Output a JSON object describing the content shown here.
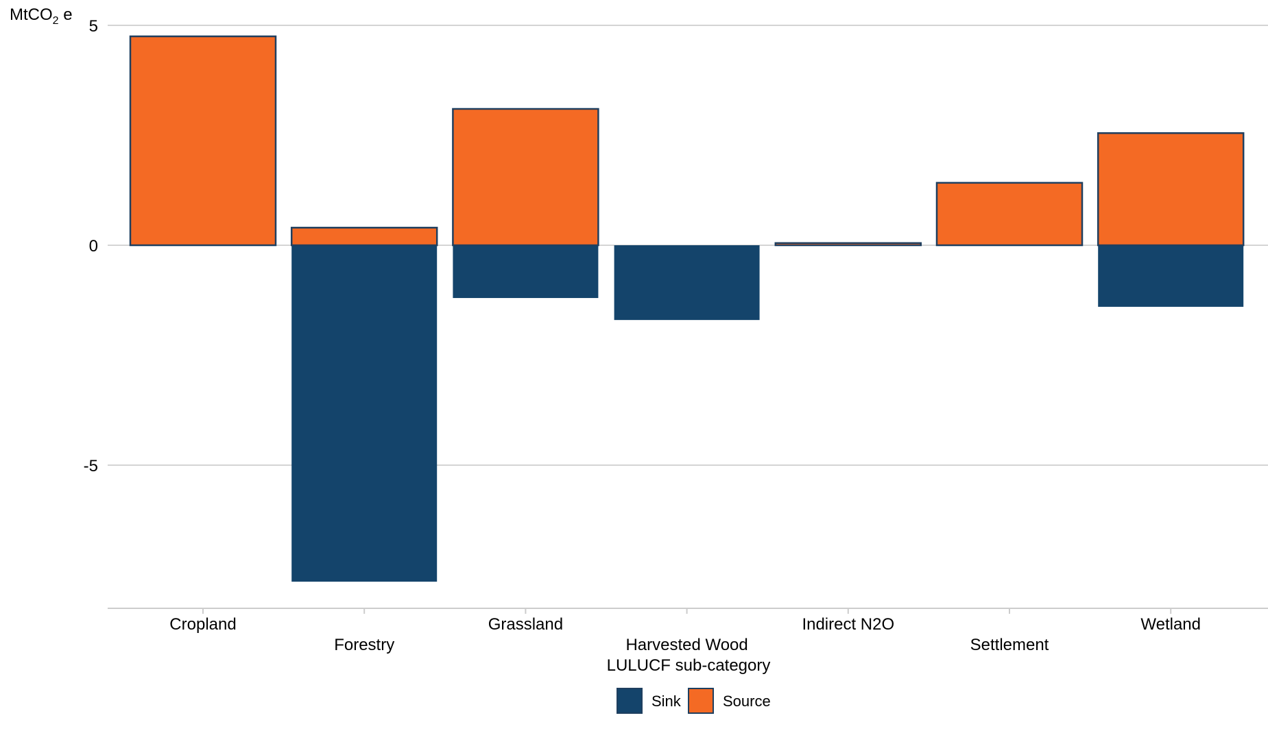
{
  "chart_data": {
    "type": "bar",
    "stacked": true,
    "ylabel": "MtCO",
    "ylabel_subscript": "2",
    "ylabel_suffix": " e",
    "xlabel": "LULUCF sub-category",
    "categories": [
      "Cropland",
      "Forestry",
      "Grassland",
      "Harvested Wood",
      "Indirect N2O",
      "Settlement",
      "Wetland"
    ],
    "series": [
      {
        "name": "Sink",
        "color": "#14446B",
        "values": [
          0,
          -7.65,
          -1.2,
          -1.7,
          0,
          0,
          -1.4
        ]
      },
      {
        "name": "Source",
        "color": "#F46A24",
        "values": [
          4.75,
          0.4,
          3.1,
          0,
          0.05,
          1.42,
          2.55
        ]
      }
    ],
    "yticks": [
      5,
      0,
      -5
    ],
    "ytick_labels": [
      "5",
      "0",
      "-5"
    ],
    "ylim": [
      -8.3,
      5
    ],
    "grid": true,
    "legend_position": "bottom-center",
    "bar_outline_color": "#1F3F5F"
  }
}
